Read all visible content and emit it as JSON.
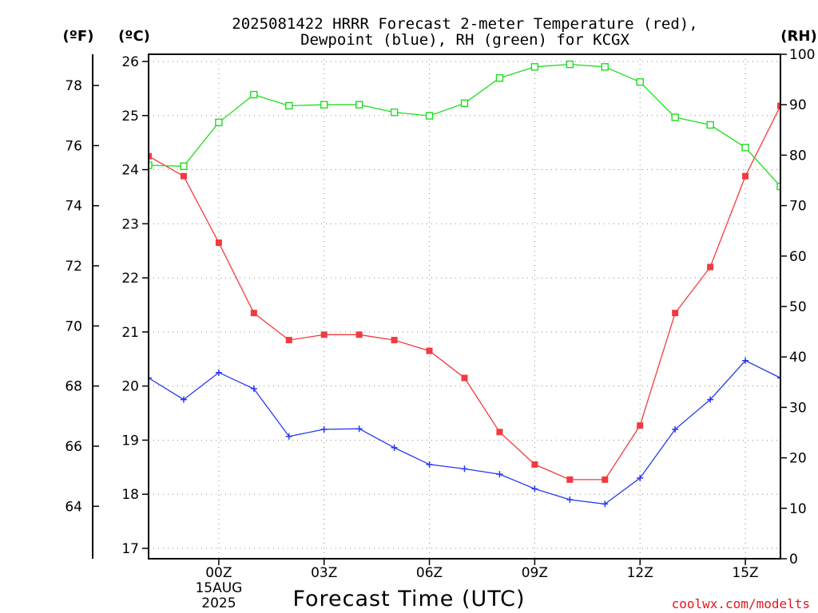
{
  "chart_data": {
    "type": "line",
    "title_lines": [
      "2025081422 HRRR Forecast 2-meter Temperature (red),",
      "Dewpoint (blue), RH (green) for KCGX"
    ],
    "unit_labels": {
      "fahrenheit": "(ºF)",
      "celsius": "(ºC)",
      "rh": "(RH)"
    },
    "xlabel": "Forecast Time (UTC)",
    "credit": "coolwx.com/modelts",
    "x_hours": [
      22,
      23,
      24,
      25,
      26,
      27,
      28,
      29,
      30,
      31,
      32,
      33,
      34,
      35,
      36,
      37,
      38,
      39,
      40
    ],
    "xlim": [
      22,
      40
    ],
    "x_ticks": [
      {
        "x": 24,
        "label": "00Z",
        "sub": [
          "15AUG",
          "2025"
        ]
      },
      {
        "x": 27,
        "label": "03Z"
      },
      {
        "x": 30,
        "label": "06Z"
      },
      {
        "x": 33,
        "label": "09Z"
      },
      {
        "x": 36,
        "label": "12Z"
      },
      {
        "x": 39,
        "label": "15Z"
      }
    ],
    "celsius_ticks": [
      "17",
      "18",
      "19",
      "20",
      "21",
      "22",
      "23",
      "24",
      "25",
      "26"
    ],
    "fahrenheit_ticks": [
      "64",
      "66",
      "68",
      "70",
      "72",
      "74",
      "76",
      "78"
    ],
    "rh_ticks": [
      "0",
      "10",
      "20",
      "30",
      "40",
      "50",
      "60",
      "70",
      "80",
      "90",
      "100"
    ],
    "celsius_lim": [
      16.8,
      26.1
    ],
    "rh_lim": [
      0,
      100
    ],
    "series": [
      {
        "name": "Temperature",
        "axis": "celsius",
        "color": "#f23a3f",
        "marker": "filled-square",
        "values": [
          24.25,
          23.88,
          22.65,
          21.35,
          20.85,
          20.95,
          20.95,
          20.85,
          20.65,
          20.15,
          19.15,
          18.55,
          18.27,
          18.27,
          19.27,
          21.35,
          22.2,
          23.88,
          25.18
        ]
      },
      {
        "name": "Dewpoint",
        "axis": "celsius",
        "color": "#2539f0",
        "marker": "plus",
        "values": [
          20.15,
          19.75,
          20.25,
          19.95,
          19.07,
          19.2,
          19.21,
          18.86,
          18.55,
          18.47,
          18.37,
          18.1,
          17.9,
          17.82,
          18.3,
          19.2,
          19.75,
          20.47,
          20.15
        ]
      },
      {
        "name": "RH",
        "axis": "rh",
        "color": "#1fdc1f",
        "marker": "open-square",
        "values": [
          78,
          77.8,
          86.5,
          92,
          89.8,
          90,
          90,
          88.5,
          87.8,
          90.3,
          95.3,
          97.5,
          98,
          97.5,
          94.5,
          87.5,
          86,
          81.5,
          73.8
        ]
      }
    ]
  }
}
